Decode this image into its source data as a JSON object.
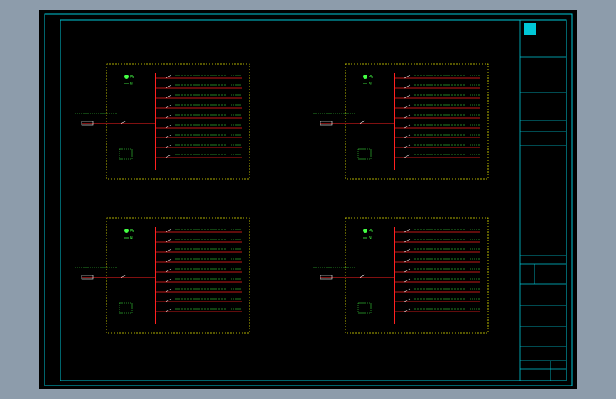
{
  "panels": [
    {
      "pe": "PE",
      "n": "N"
    },
    {
      "pe": "PE",
      "n": "N"
    },
    {
      "pe": "PE",
      "n": "N"
    },
    {
      "pe": "PE",
      "n": "N"
    }
  ]
}
